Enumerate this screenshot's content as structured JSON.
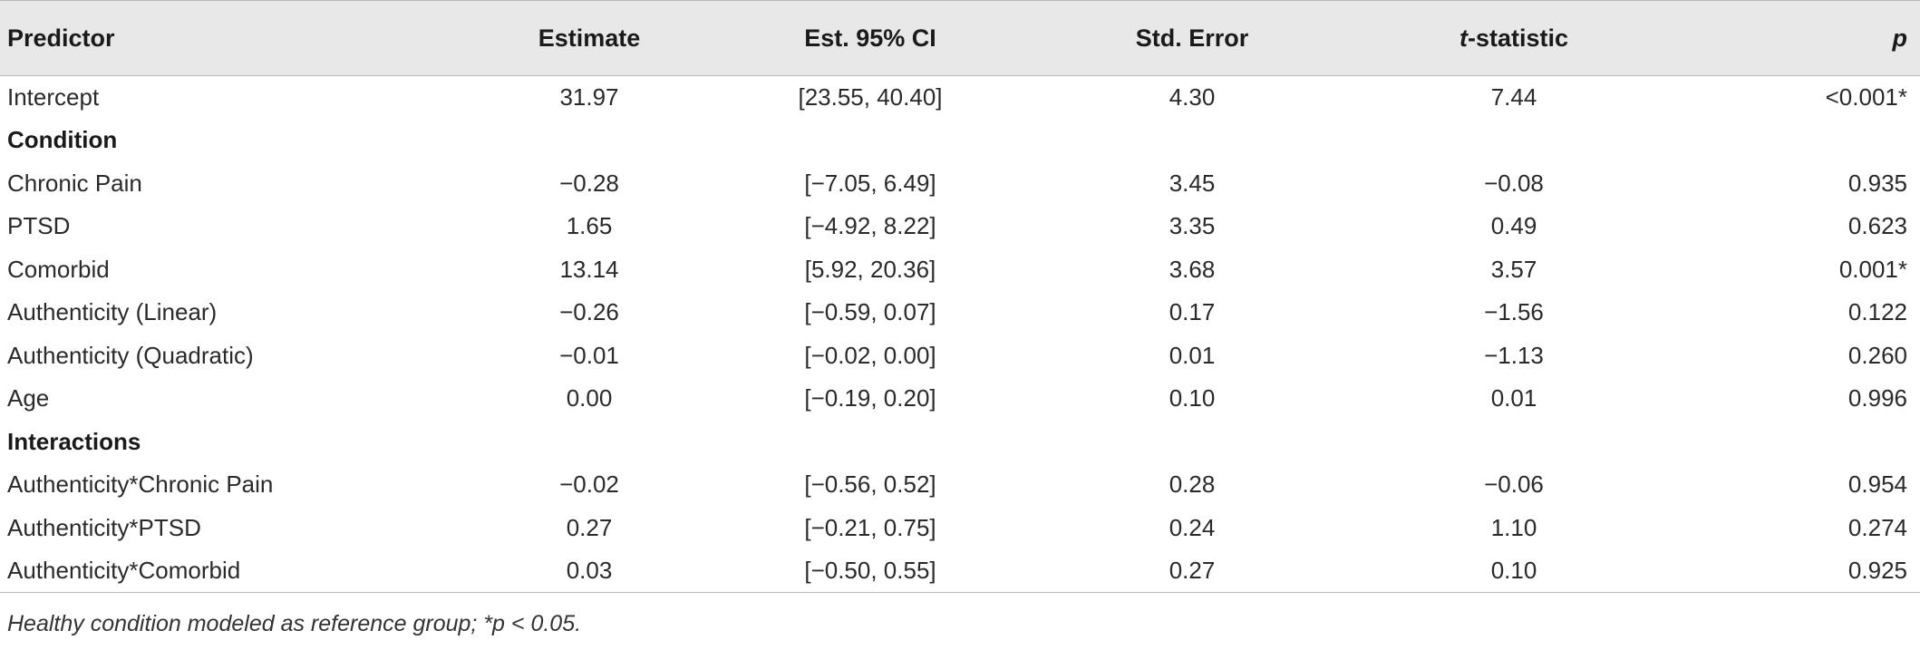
{
  "table": {
    "headers": {
      "predictor": "Predictor",
      "estimate": "Estimate",
      "ci": "Est. 95% CI",
      "se": "Std. Error",
      "t_italic": "t",
      "t_rest": "-statistic",
      "p": "p"
    },
    "rows": [
      {
        "predictor": "Intercept",
        "estimate": "31.97",
        "ci": "[23.55, 40.40]",
        "se": "4.30",
        "t": "7.44",
        "p": "<0.001*"
      },
      {
        "section": "Condition"
      },
      {
        "predictor": "Chronic Pain",
        "estimate": "−0.28",
        "ci": "[−7.05, 6.49]",
        "se": "3.45",
        "t": "−0.08",
        "p": "0.935"
      },
      {
        "predictor": "PTSD",
        "estimate": "1.65",
        "ci": "[−4.92, 8.22]",
        "se": "3.35",
        "t": "0.49",
        "p": "0.623"
      },
      {
        "predictor": "Comorbid",
        "estimate": "13.14",
        "ci": "[5.92, 20.36]",
        "se": "3.68",
        "t": "3.57",
        "p": "0.001*"
      },
      {
        "predictor": "Authenticity (Linear)",
        "estimate": "−0.26",
        "ci": "[−0.59, 0.07]",
        "se": "0.17",
        "t": "−1.56",
        "p": "0.122"
      },
      {
        "predictor": "Authenticity (Quadratic)",
        "estimate": "−0.01",
        "ci": "[−0.02, 0.00]",
        "se": "0.01",
        "t": "−1.13",
        "p": "0.260"
      },
      {
        "predictor": "Age",
        "estimate": "0.00",
        "ci": "[−0.19, 0.20]",
        "se": "0.10",
        "t": "0.01",
        "p": "0.996"
      },
      {
        "section": "Interactions"
      },
      {
        "predictor": "Authenticity*Chronic Pain",
        "estimate": "−0.02",
        "ci": "[−0.56, 0.52]",
        "se": "0.28",
        "t": "−0.06",
        "p": "0.954"
      },
      {
        "predictor": "Authenticity*PTSD",
        "estimate": "0.27",
        "ci": "[−0.21, 0.75]",
        "se": "0.24",
        "t": "1.10",
        "p": "0.274"
      },
      {
        "predictor": "Authenticity*Comorbid",
        "estimate": "0.03",
        "ci": "[−0.50, 0.55]",
        "se": "0.27",
        "t": "0.10",
        "p": "0.925"
      }
    ]
  },
  "footnote": "Healthy condition modeled as reference group; *p < 0.05."
}
